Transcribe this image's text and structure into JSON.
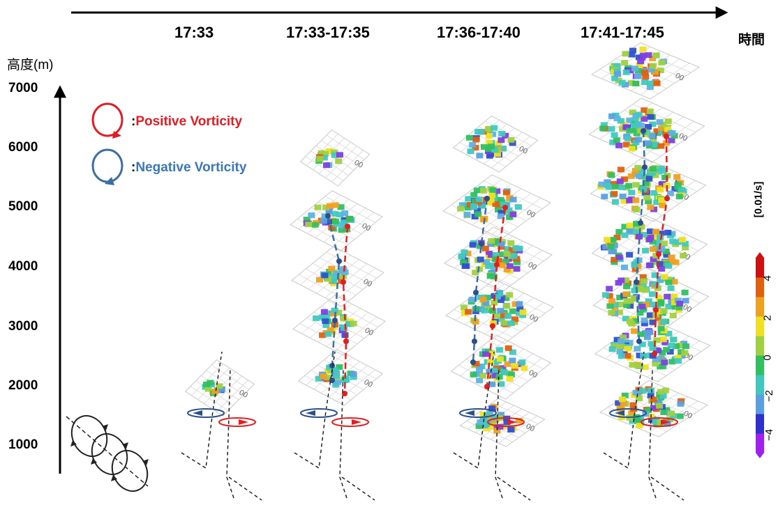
{
  "time_axis": {
    "labels": [
      "17:33",
      "17:33-17:35",
      "17:36-17:40",
      "17:41-17:45"
    ],
    "axis_label": "時間"
  },
  "altitude_axis": {
    "label": "高度(m)",
    "ticks": [
      "7000",
      "6000",
      "5000",
      "4000",
      "3000",
      "2000",
      "1000"
    ]
  },
  "legend": {
    "positive_label": "Positive Vorticity",
    "negative_label": "Negative Vorticity",
    "positive_color": "#e31c23",
    "negative_color": "#3b6ea5"
  },
  "colorbar": {
    "unit": "[0.01/s]",
    "ticks": [
      "4",
      "2",
      "0",
      "−2",
      "−4"
    ],
    "colors": [
      "#a020f0",
      "#3030d0",
      "#5aa0e0",
      "#40c8c0",
      "#30c060",
      "#a0d040",
      "#f0e020",
      "#f0a020",
      "#e06010",
      "#d01010"
    ]
  },
  "plane_tick_text": "00"
}
